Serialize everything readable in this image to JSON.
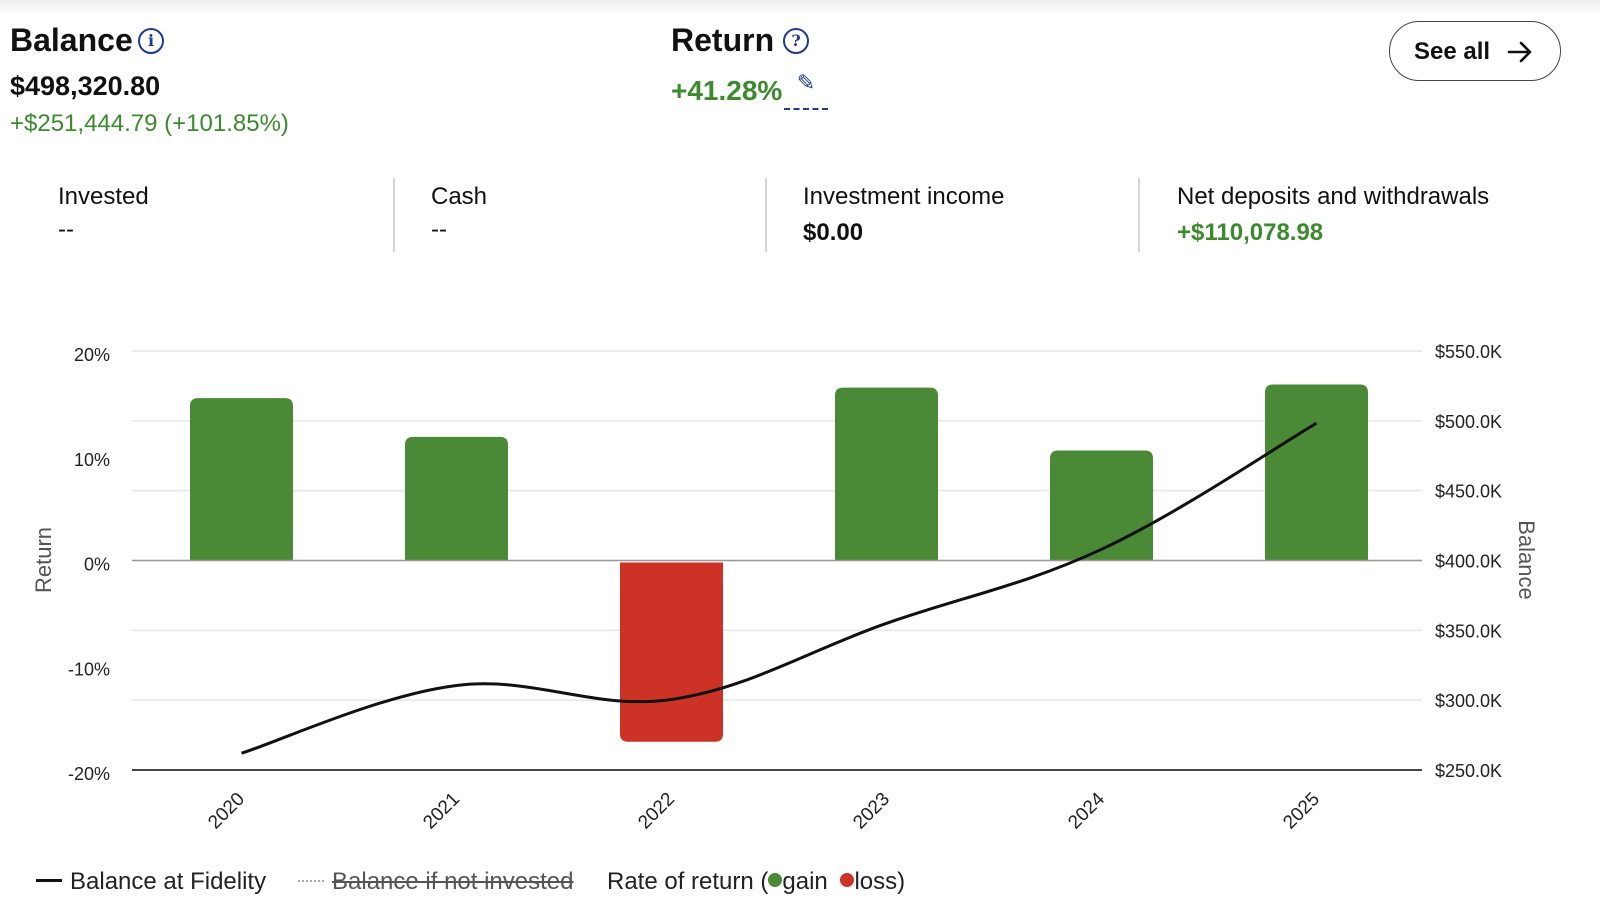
{
  "balance": {
    "title": "Balance",
    "value": "$498,320.80",
    "change": "+$251,444.79 (+101.85%)"
  },
  "return": {
    "title": "Return",
    "value": "+41.28%"
  },
  "see_all_label": "See all",
  "metrics": [
    {
      "label": "Invested",
      "value": "--"
    },
    {
      "label": "Cash",
      "value": "--"
    },
    {
      "label": "Investment income",
      "value": "$0.00"
    },
    {
      "label": "Net deposits and withdrawals",
      "value": "+$110,078.98"
    }
  ],
  "colors": {
    "gain": "#4a8a36",
    "loss": "#cc3326",
    "line": "#111111",
    "grid": "#e6e6e6",
    "accent": "#1f3b8f"
  },
  "legend": {
    "balance_line": "Balance at Fidelity",
    "not_invested": "Balance if not invested",
    "rate_prefix": "Rate of return (",
    "gain": "gain",
    "loss": "loss)"
  },
  "chart_data": {
    "type": "bar",
    "categories": [
      "2020",
      "2021",
      "2022",
      "2023",
      "2024",
      "2025"
    ],
    "series": [
      {
        "name": "Rate of return",
        "axis": "left",
        "unit": "%",
        "values": [
          15.5,
          11.8,
          -17.3,
          16.5,
          10.5,
          16.8
        ]
      },
      {
        "name": "Balance at Fidelity",
        "axis": "right",
        "type": "line",
        "values": [
          262000,
          310500,
          300500,
          355000,
          408000,
          498320.8
        ]
      }
    ],
    "yleft": {
      "label": "Return",
      "ylim": [
        -20,
        20
      ],
      "ticks": [
        "20%",
        "10%",
        "0%",
        "-10%",
        "-20%"
      ]
    },
    "yright": {
      "label": "Balance",
      "ylim": [
        250000,
        550000
      ],
      "ticks": [
        "$550.0K",
        "$500.0K",
        "$450.0K",
        "$400.0K",
        "$350.0K",
        "$300.0K",
        "$250.0K"
      ]
    },
    "grid": true
  }
}
